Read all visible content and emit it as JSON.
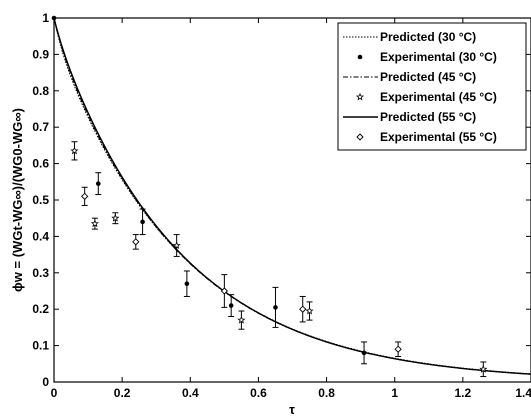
{
  "chart_data": {
    "type": "scatter",
    "xlabel": "τ",
    "ylabel": "ϕw = (WGt-WG∞)/(WG0-WG∞)",
    "xlim": [
      0,
      1.4
    ],
    "ylim": [
      0,
      1
    ],
    "x_ticks": [
      "0",
      "0.2",
      "0.4",
      "0.6",
      "0.8",
      "1",
      "1.2",
      "1.4"
    ],
    "y_ticks": [
      "0",
      "0.1",
      "0.2",
      "0.3",
      "0.4",
      "0.5",
      "0.6",
      "0.7",
      "0.8",
      "0.9",
      "1"
    ],
    "grid": false,
    "legend_position": "top-right",
    "series": [
      {
        "name": "Predicted (30 °C)",
        "kind": "line",
        "style": "dotted",
        "k": 2.68,
        "c": 0.95,
        "color": "#000000"
      },
      {
        "name": "Experimental (30 °C)",
        "kind": "marker",
        "marker": "filled-dot",
        "color": "#000000",
        "points": [
          {
            "x": 0,
            "y": 1.0,
            "err": 0
          },
          {
            "x": 0.13,
            "y": 0.545,
            "err": 0.03
          },
          {
            "x": 0.26,
            "y": 0.44,
            "err": 0.035
          },
          {
            "x": 0.39,
            "y": 0.27,
            "err": 0.035
          },
          {
            "x": 0.52,
            "y": 0.21,
            "err": 0.03
          },
          {
            "x": 0.65,
            "y": 0.205,
            "err": 0.055
          },
          {
            "x": 0.91,
            "y": 0.08,
            "err": 0.03
          }
        ]
      },
      {
        "name": "Predicted (45 °C)",
        "kind": "line",
        "style": "dash-dot",
        "k": 2.71,
        "c": 0.96,
        "color": "#000000"
      },
      {
        "name": "Experimental (45 °C)",
        "kind": "marker",
        "marker": "star",
        "color": "#000000",
        "points": [
          {
            "x": 0.06,
            "y": 0.635,
            "err": 0.025
          },
          {
            "x": 0.12,
            "y": 0.435,
            "err": 0.015
          },
          {
            "x": 0.18,
            "y": 0.45,
            "err": 0.015
          },
          {
            "x": 0.36,
            "y": 0.375,
            "err": 0.03
          },
          {
            "x": 0.55,
            "y": 0.17,
            "err": 0.025
          },
          {
            "x": 0.75,
            "y": 0.195,
            "err": 0.025
          },
          {
            "x": 1.26,
            "y": 0.035,
            "err": 0.02
          }
        ]
      },
      {
        "name": "Predicted (55 °C)",
        "kind": "line",
        "style": "solid",
        "k": 2.72,
        "c": 0.97,
        "color": "#000000"
      },
      {
        "name": "Experimental (55 °C)",
        "kind": "marker",
        "marker": "diamond",
        "color": "#000000",
        "points": [
          {
            "x": 0.09,
            "y": 0.51,
            "err": 0.025
          },
          {
            "x": 0.24,
            "y": 0.385,
            "err": 0.02
          },
          {
            "x": 0.5,
            "y": 0.25,
            "err": 0.045
          },
          {
            "x": 0.73,
            "y": 0.2,
            "err": 0.035
          },
          {
            "x": 1.01,
            "y": 0.09,
            "err": 0.02
          }
        ]
      }
    ]
  }
}
